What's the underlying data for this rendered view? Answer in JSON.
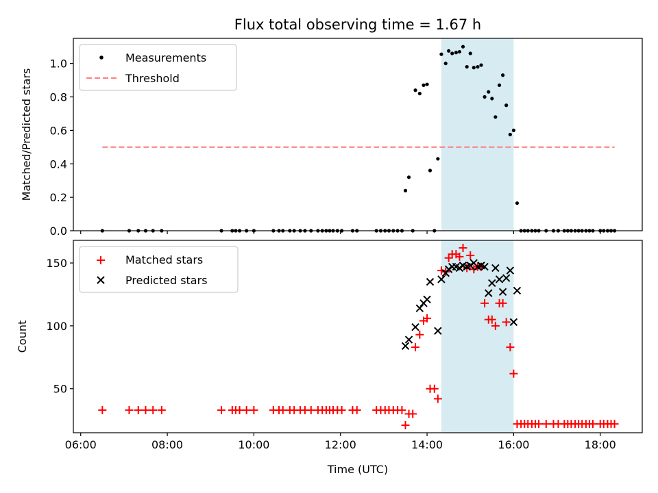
{
  "chart_data": [
    {
      "type": "scatter",
      "title": "Flux total observing time = 1.67 h",
      "xlabel": "",
      "ylabel": "Matched/Predicted stars",
      "xlim": [
        5.83,
        18.97
      ],
      "ylim": [
        0.0,
        1.15
      ],
      "yticks": [
        "0.0",
        "0.2",
        "0.4",
        "0.6",
        "0.8",
        "1.0"
      ],
      "ytick_values": [
        0.0,
        0.2,
        0.4,
        0.6,
        0.8,
        1.0
      ],
      "grid": false,
      "legend": {
        "placement": "upper-left",
        "entries": [
          "Measurements",
          "Threshold"
        ]
      },
      "highlight_span": {
        "x": [
          14.33,
          16.0
        ],
        "color": "#add8e6"
      },
      "threshold": {
        "name": "Threshold",
        "y": 0.5,
        "x": [
          6.5,
          18.33
        ],
        "color": "#ff7f7f"
      },
      "series": [
        {
          "name": "Measurements",
          "color": "#000000",
          "x": [
            6.5,
            7.12,
            7.33,
            7.5,
            7.67,
            7.87,
            9.25,
            9.5,
            9.58,
            9.67,
            9.83,
            10.0,
            10.45,
            10.58,
            10.67,
            10.83,
            10.93,
            11.07,
            11.18,
            11.32,
            11.48,
            11.58,
            11.67,
            11.75,
            11.83,
            11.93,
            12.03,
            12.28,
            12.38,
            12.83,
            12.93,
            13.03,
            13.12,
            13.22,
            13.32,
            13.42,
            13.5,
            13.58,
            13.67,
            13.73,
            13.83,
            13.92,
            14.0,
            14.07,
            14.17,
            14.25,
            14.33,
            14.43,
            14.5,
            14.58,
            14.67,
            14.75,
            14.83,
            14.92,
            15.0,
            15.08,
            15.17,
            15.25,
            15.33,
            15.42,
            15.5,
            15.58,
            15.67,
            15.75,
            15.83,
            15.92,
            16.0,
            16.08,
            16.17,
            16.25,
            16.33,
            16.42,
            16.5,
            16.58,
            16.75,
            16.92,
            17.03,
            17.17,
            17.25,
            17.33,
            17.42,
            17.5,
            17.58,
            17.67,
            17.75,
            17.83,
            18.0,
            18.08,
            18.17,
            18.25,
            18.33
          ],
          "y": [
            0,
            0,
            0,
            0,
            0,
            0,
            0,
            0,
            0,
            0,
            0,
            0,
            0,
            0,
            0,
            0,
            0,
            0,
            0,
            0,
            0,
            0,
            0,
            0,
            0,
            0,
            0,
            0,
            0,
            0,
            0,
            0,
            0,
            0,
            0,
            0,
            0.24,
            0.32,
            0,
            0.84,
            0.82,
            0.87,
            0.875,
            0.36,
            0,
            0.43,
            1.055,
            1.0,
            1.075,
            1.06,
            1.065,
            1.07,
            1.1,
            0.98,
            1.06,
            0.975,
            0.98,
            0.99,
            0.8,
            0.83,
            0.79,
            0.68,
            0.87,
            0.93,
            0.75,
            0.575,
            0.6,
            0.165,
            0,
            0,
            0,
            0,
            0,
            0,
            0,
            0,
            0,
            0,
            0,
            0,
            0,
            0,
            0,
            0,
            0,
            0,
            0,
            0,
            0,
            0,
            0
          ]
        }
      ]
    },
    {
      "type": "scatter",
      "title": "",
      "xlabel": "Time (UTC)",
      "ylabel": "Count",
      "xlim": [
        5.83,
        18.97
      ],
      "ylim": [
        15.0,
        168.0
      ],
      "yticks": [
        "50",
        "100",
        "150"
      ],
      "ytick_values": [
        50,
        100,
        150
      ],
      "xticks": [
        "06:00",
        "08:00",
        "10:00",
        "12:00",
        "14:00",
        "16:00",
        "18:00"
      ],
      "xtick_values": [
        6,
        8,
        10,
        12,
        14,
        16,
        18
      ],
      "grid": false,
      "legend": {
        "placement": "upper-left",
        "entries": [
          "Matched stars",
          "Predicted stars"
        ]
      },
      "highlight_span": {
        "x": [
          14.33,
          16.0
        ],
        "color": "#add8e6"
      },
      "series": [
        {
          "name": "Matched stars",
          "color": "#ff0000",
          "marker": "plus",
          "x": [
            6.5,
            7.12,
            7.33,
            7.5,
            7.67,
            7.87,
            9.25,
            9.5,
            9.58,
            9.67,
            9.83,
            10.0,
            10.45,
            10.58,
            10.67,
            10.83,
            10.93,
            11.07,
            11.18,
            11.32,
            11.48,
            11.58,
            11.67,
            11.75,
            11.83,
            11.93,
            12.03,
            12.28,
            12.38,
            12.83,
            12.93,
            13.03,
            13.12,
            13.22,
            13.32,
            13.42,
            13.5,
            13.58,
            13.67,
            13.73,
            13.83,
            13.92,
            14.0,
            14.07,
            14.17,
            14.25,
            14.33,
            14.43,
            14.5,
            14.58,
            14.67,
            14.75,
            14.83,
            14.92,
            15.0,
            15.08,
            15.17,
            15.25,
            15.33,
            15.42,
            15.5,
            15.58,
            15.67,
            15.75,
            15.83,
            15.92,
            16.0,
            16.08,
            16.17,
            16.25,
            16.33,
            16.42,
            16.5,
            16.58,
            16.75,
            16.92,
            17.03,
            17.17,
            17.25,
            17.33,
            17.42,
            17.5,
            17.58,
            17.67,
            17.75,
            17.83,
            18.0,
            18.08,
            18.17,
            18.25,
            18.33
          ],
          "y": [
            33,
            33,
            33,
            33,
            33,
            33,
            33,
            33,
            33,
            33,
            33,
            33,
            33,
            33,
            33,
            33,
            33,
            33,
            33,
            33,
            33,
            33,
            33,
            33,
            33,
            33,
            33,
            33,
            33,
            33,
            33,
            33,
            33,
            33,
            33,
            33,
            21,
            30,
            30,
            83,
            93,
            104,
            106,
            50,
            50,
            42,
            144,
            143,
            154,
            157,
            157,
            155,
            162,
            146,
            156,
            145,
            147,
            147,
            118,
            105,
            105,
            100,
            118,
            118,
            103,
            83,
            62,
            22,
            22,
            22,
            22,
            22,
            22,
            22,
            22,
            22,
            22,
            22,
            22,
            22,
            22,
            22,
            22,
            22,
            22,
            22,
            22,
            22,
            22,
            22,
            22
          ]
        },
        {
          "name": "Predicted stars",
          "color": "#000000",
          "marker": "x",
          "x": [
            13.5,
            13.58,
            13.73,
            13.83,
            13.92,
            14.0,
            14.07,
            14.25,
            14.33,
            14.43,
            14.5,
            14.58,
            14.67,
            14.75,
            14.83,
            14.92,
            15.0,
            15.08,
            15.17,
            15.25,
            15.33,
            15.42,
            15.5,
            15.58,
            15.67,
            15.75,
            15.83,
            15.92,
            16.0,
            16.08
          ],
          "y": [
            84,
            89,
            99,
            114,
            118,
            121,
            135,
            96,
            137,
            142,
            145,
            147,
            147,
            146,
            148,
            147,
            148,
            150,
            147,
            148,
            147,
            126,
            134,
            146,
            137,
            127,
            138,
            144,
            103,
            128
          ]
        }
      ]
    }
  ]
}
